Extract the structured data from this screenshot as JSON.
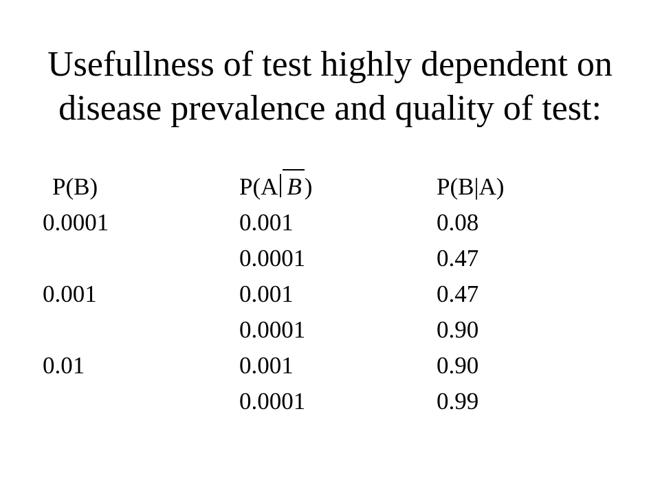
{
  "title": {
    "line1": "Usefullness of test highly dependent on",
    "line2": "disease prevalence and quality of test:"
  },
  "table": {
    "headers": {
      "col1": "P(B)",
      "col2_prefix": "P(A",
      "col2_var": "B",
      "col2_suffix": ")",
      "col3": "P(B|A)"
    },
    "rows": [
      {
        "p_b": "0.0001",
        "p_a_notb": "0.001",
        "p_b_given_a": "0.08"
      },
      {
        "p_b": "",
        "p_a_notb": "0.0001",
        "p_b_given_a": "0.47"
      },
      {
        "p_b": "0.001",
        "p_a_notb": "0.001",
        "p_b_given_a": "0.47"
      },
      {
        "p_b": "",
        "p_a_notb": "0.0001",
        "p_b_given_a": "0.90"
      },
      {
        "p_b": "0.01",
        "p_a_notb": "0.001",
        "p_b_given_a": "0.90"
      },
      {
        "p_b": "",
        "p_a_notb": "0.0001",
        "p_b_given_a": "0.99"
      }
    ]
  }
}
